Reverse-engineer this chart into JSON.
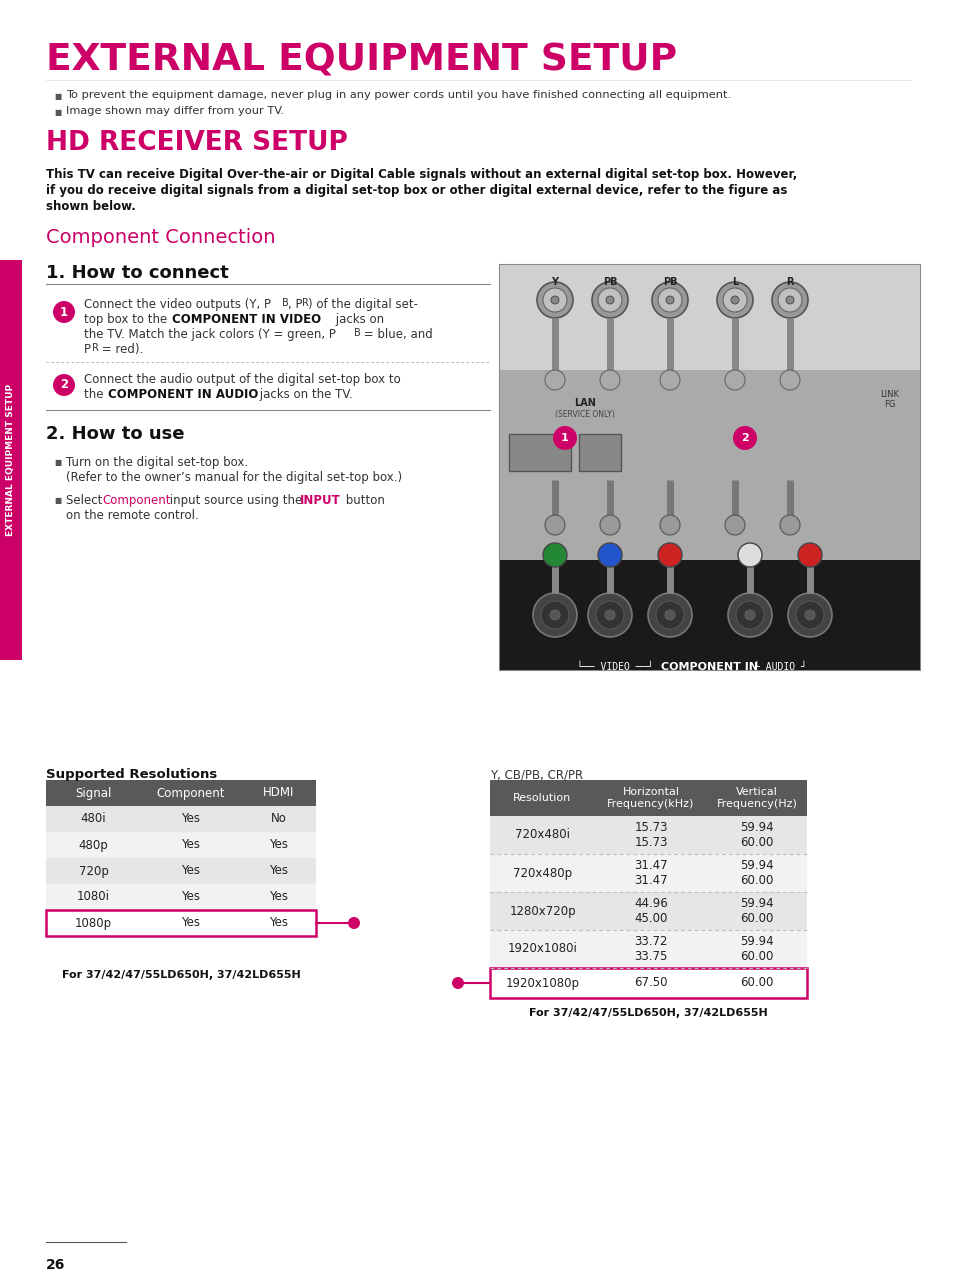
{
  "title": "EXTERNAL EQUIPMENT SETUP",
  "title_color": "#cc0066",
  "subtitle": "HD RECEIVER SETUP",
  "subtitle_color": "#cc0066",
  "bullet1": "To prevent the equipment damage, never plug in any power cords until you have finished connecting all equipment.",
  "bullet2": "Image shown may differ from your TV.",
  "intro_line1": "This TV can receive Digital Over-the-air or Digital Cable signals without an external digital set-top box. However,",
  "intro_line2": "if you do receive digital signals from a digital set-top box or other digital external device, refer to the figure as",
  "intro_line3": "shown below.",
  "section_title": "Component Connection",
  "section_title_color": "#cc0066",
  "how_to_connect": "1. How to connect",
  "how_to_use": "2. How to use",
  "use_bullet2_component_color": "#cc0066",
  "use_bullet2_input_color": "#cc0066",
  "sidebar_text": "EXTERNAL EQUIPMENT SETUP",
  "sidebar_color": "#cc0066",
  "supported_title": "Supported Resolutions",
  "table1_headers": [
    "Signal",
    "Component",
    "HDMI"
  ],
  "table1_header_bg": "#595959",
  "table1_header_color": "#ffffff",
  "table1_rows": [
    [
      "480i",
      "Yes",
      "No"
    ],
    [
      "480p",
      "Yes",
      "Yes"
    ],
    [
      "720p",
      "Yes",
      "Yes"
    ],
    [
      "1080i",
      "Yes",
      "Yes"
    ],
    [
      "1080p",
      "Yes",
      "Yes"
    ]
  ],
  "table1_highlight_row": 4,
  "table1_highlight_color": "#cc0066",
  "table1_footer": "For 37/42/47/55LD650H, 37/42LD655H",
  "table2_label": "Y, CB/PB, CR/PR",
  "table2_headers": [
    "Resolution",
    "Horizontal\nFrequency(kHz)",
    "Vertical\nFrequency(Hz)"
  ],
  "table2_header_bg": "#595959",
  "table2_header_color": "#ffffff",
  "table2_rows": [
    [
      "720x480i",
      "15.73\n15.73",
      "59.94\n60.00"
    ],
    [
      "720x480p",
      "31.47\n31.47",
      "59.94\n60.00"
    ],
    [
      "1280x720p",
      "44.96\n45.00",
      "59.94\n60.00"
    ],
    [
      "1920x1080i",
      "33.72\n33.75",
      "59.94\n60.00"
    ],
    [
      "1920x1080p",
      "67.50",
      "60.00"
    ]
  ],
  "table2_highlight_row": 4,
  "table2_highlight_color": "#cc0066",
  "table2_footer": "For 37/42/47/55LD650H, 37/42LD655H",
  "page_number": "26",
  "bg_color": "#ffffff"
}
